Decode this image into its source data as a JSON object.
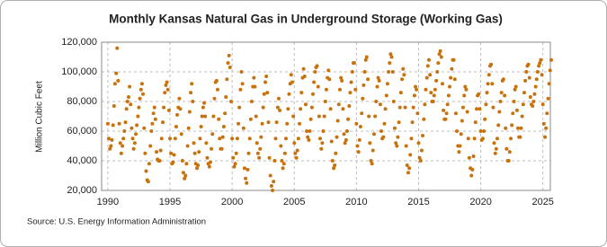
{
  "chart_data": {
    "type": "scatter",
    "title": "Monthly Kansas Natural Gas in Underground Storage (Working Gas)",
    "y_label": "Million Cubic Feet",
    "source": "Source: U.S. Energy Information Administration",
    "color": "#c8720c",
    "grid": true,
    "xlim": [
      1989.5,
      2025.6
    ],
    "xticks": [
      1990,
      1995,
      2000,
      2005,
      2010,
      2015,
      2020,
      2025
    ],
    "ylim": [
      20000,
      120000
    ],
    "yticks": [
      {
        "value": 20000,
        "label": "20,000"
      },
      {
        "value": 40000,
        "label": "40,000"
      },
      {
        "value": 60000,
        "label": "60,000"
      },
      {
        "value": 80000,
        "label": "80,000"
      },
      {
        "value": 100000,
        "label": "100,000"
      },
      {
        "value": 120000,
        "label": "120,000"
      }
    ],
    "x": [
      1990,
      1990.08,
      1990.17,
      1990.25,
      1990.33,
      1990.42,
      1990.5,
      1990.58,
      1990.67,
      1990.75,
      1990.83,
      1990.92,
      1991,
      1991.08,
      1991.17,
      1991.25,
      1991.33,
      1991.42,
      1991.5,
      1991.58,
      1991.67,
      1991.75,
      1991.83,
      1991.92,
      1992,
      1992.08,
      1992.17,
      1992.25,
      1992.33,
      1992.42,
      1992.5,
      1992.58,
      1992.67,
      1992.75,
      1992.83,
      1992.92,
      1993,
      1993.08,
      1993.17,
      1993.25,
      1993.33,
      1993.42,
      1993.5,
      1993.58,
      1993.67,
      1993.75,
      1993.83,
      1993.92,
      1994,
      1994.08,
      1994.17,
      1994.25,
      1994.33,
      1994.42,
      1994.5,
      1994.58,
      1994.67,
      1994.75,
      1994.83,
      1994.92,
      1995,
      1995.08,
      1995.17,
      1995.25,
      1995.33,
      1995.42,
      1995.5,
      1995.58,
      1995.67,
      1995.75,
      1995.83,
      1995.92,
      1996,
      1996.08,
      1996.17,
      1996.25,
      1996.33,
      1996.42,
      1996.5,
      1996.58,
      1996.67,
      1996.75,
      1996.83,
      1996.92,
      1997,
      1997.08,
      1997.17,
      1997.25,
      1997.33,
      1997.42,
      1997.5,
      1997.58,
      1997.67,
      1997.75,
      1997.83,
      1997.92,
      1998,
      1998.08,
      1998.17,
      1998.25,
      1998.33,
      1998.42,
      1998.5,
      1998.58,
      1998.67,
      1998.75,
      1998.83,
      1998.92,
      1999,
      1999.08,
      1999.17,
      1999.25,
      1999.33,
      1999.42,
      1999.5,
      1999.58,
      1999.67,
      1999.75,
      1999.83,
      1999.92,
      2000,
      2000.08,
      2000.17,
      2000.25,
      2000.33,
      2000.42,
      2000.5,
      2000.58,
      2000.67,
      2000.75,
      2000.83,
      2000.92,
      2001,
      2001.08,
      2001.17,
      2001.25,
      2001.33,
      2001.42,
      2001.5,
      2001.58,
      2001.67,
      2001.75,
      2001.83,
      2001.92,
      2002,
      2002.08,
      2002.17,
      2002.25,
      2002.33,
      2002.42,
      2002.5,
      2002.58,
      2002.67,
      2002.75,
      2002.83,
      2002.92,
      2003,
      2003.08,
      2003.17,
      2003.25,
      2003.33,
      2003.42,
      2003.5,
      2003.58,
      2003.67,
      2003.75,
      2003.83,
      2003.92,
      2004,
      2004.08,
      2004.17,
      2004.25,
      2004.33,
      2004.42,
      2004.5,
      2004.58,
      2004.67,
      2004.75,
      2004.83,
      2004.92,
      2005,
      2005.08,
      2005.17,
      2005.25,
      2005.33,
      2005.42,
      2005.5,
      2005.58,
      2005.67,
      2005.75,
      2005.83,
      2005.92,
      2006,
      2006.08,
      2006.17,
      2006.25,
      2006.33,
      2006.42,
      2006.5,
      2006.58,
      2006.67,
      2006.75,
      2006.83,
      2006.92,
      2007,
      2007.08,
      2007.17,
      2007.25,
      2007.33,
      2007.42,
      2007.5,
      2007.58,
      2007.67,
      2007.75,
      2007.83,
      2007.92,
      2008,
      2008.08,
      2008.17,
      2008.25,
      2008.33,
      2008.42,
      2008.5,
      2008.58,
      2008.67,
      2008.75,
      2008.83,
      2008.92,
      2009,
      2009.08,
      2009.17,
      2009.25,
      2009.33,
      2009.42,
      2009.5,
      2009.58,
      2009.67,
      2009.75,
      2009.83,
      2009.92,
      2010,
      2010.08,
      2010.17,
      2010.25,
      2010.33,
      2010.42,
      2010.5,
      2010.58,
      2010.67,
      2010.75,
      2010.83,
      2010.92,
      2011,
      2011.08,
      2011.17,
      2011.25,
      2011.33,
      2011.42,
      2011.5,
      2011.58,
      2011.67,
      2011.75,
      2011.83,
      2011.92,
      2012,
      2012.08,
      2012.17,
      2012.25,
      2012.33,
      2012.42,
      2012.5,
      2012.58,
      2012.67,
      2012.75,
      2012.83,
      2012.92,
      2013,
      2013.08,
      2013.17,
      2013.25,
      2013.33,
      2013.42,
      2013.5,
      2013.58,
      2013.67,
      2013.75,
      2013.83,
      2013.92,
      2014,
      2014.08,
      2014.17,
      2014.25,
      2014.33,
      2014.42,
      2014.5,
      2014.58,
      2014.67,
      2014.75,
      2014.83,
      2014.92,
      2015,
      2015.08,
      2015.17,
      2015.25,
      2015.33,
      2015.42,
      2015.5,
      2015.58,
      2015.67,
      2015.75,
      2015.83,
      2015.92,
      2016,
      2016.08,
      2016.17,
      2016.25,
      2016.33,
      2016.42,
      2016.5,
      2016.58,
      2016.67,
      2016.75,
      2016.83,
      2016.92,
      2017,
      2017.08,
      2017.17,
      2017.25,
      2017.33,
      2017.42,
      2017.5,
      2017.58,
      2017.67,
      2017.75,
      2017.83,
      2017.92,
      2018,
      2018.08,
      2018.17,
      2018.25,
      2018.33,
      2018.42,
      2018.5,
      2018.58,
      2018.67,
      2018.75,
      2018.83,
      2018.92,
      2019,
      2019.08,
      2019.17,
      2019.25,
      2019.33,
      2019.42,
      2019.5,
      2019.58,
      2019.67,
      2019.75,
      2019.83,
      2019.92,
      2020,
      2020.08,
      2020.17,
      2020.25,
      2020.33,
      2020.42,
      2020.5,
      2020.58,
      2020.67,
      2020.75,
      2020.83,
      2020.92,
      2021,
      2021.08,
      2021.17,
      2021.25,
      2021.33,
      2021.42,
      2021.5,
      2021.58,
      2021.67,
      2021.75,
      2021.83,
      2021.92,
      2022,
      2022.08,
      2022.17,
      2022.25,
      2022.33,
      2022.42,
      2022.5,
      2022.58,
      2022.67,
      2022.75,
      2022.83,
      2022.92,
      2023,
      2023.08,
      2023.17,
      2023.25,
      2023.33,
      2023.42,
      2023.5,
      2023.58,
      2023.67,
      2023.75,
      2023.83,
      2023.92,
      2024,
      2024.08,
      2024.17,
      2024.25,
      2024.33,
      2024.42,
      2024.5,
      2024.58,
      2024.67,
      2024.75,
      2024.83,
      2024.92,
      2025,
      2025.08,
      2025.17,
      2025.25,
      2025.33,
      2025.42,
      2025.5,
      2025.58,
      2025.67
    ],
    "values": [
      65000,
      55000,
      48000,
      50000,
      54000,
      64000,
      77000,
      92000,
      99000,
      116000,
      94000,
      65000,
      52000,
      45000,
      50000,
      55000,
      60000,
      66000,
      75000,
      80000,
      83000,
      90000,
      78000,
      62000,
      55000,
      48000,
      52000,
      58000,
      64000,
      70000,
      76000,
      82000,
      88000,
      92000,
      85000,
      62000,
      45000,
      33000,
      27000,
      26000,
      38000,
      50000,
      60000,
      65000,
      72000,
      76000,
      68000,
      46000,
      41000,
      40000,
      40000,
      47000,
      55000,
      66000,
      76000,
      86000,
      91000,
      93000,
      88000,
      74000,
      55000,
      45000,
      38000,
      39000,
      44000,
      55000,
      63000,
      71000,
      76000,
      82000,
      75000,
      58000,
      40000,
      32000,
      28000,
      30000,
      38000,
      50000,
      62000,
      73000,
      86000,
      92000,
      80000,
      52000,
      45000,
      38000,
      35000,
      37000,
      46000,
      55000,
      63000,
      70000,
      76000,
      79000,
      70000,
      52000,
      42000,
      38000,
      36000,
      39000,
      48000,
      58000,
      70000,
      82000,
      93000,
      94000,
      88000,
      68000,
      55000,
      48000,
      48000,
      56000,
      63000,
      72000,
      83000,
      95000,
      106000,
      111000,
      103000,
      80000,
      55000,
      42000,
      36000,
      38000,
      45000,
      55000,
      65000,
      76000,
      88000,
      100000,
      92000,
      62000,
      35000,
      28000,
      25000,
      34000,
      45000,
      55000,
      68000,
      80000,
      90000,
      96000,
      90000,
      70000,
      52000,
      45000,
      42000,
      48000,
      56000,
      65000,
      76000,
      85000,
      93000,
      97000,
      86000,
      66000,
      42000,
      30000,
      23000,
      20000,
      26000,
      40000,
      55000,
      66000,
      76000,
      82000,
      74000,
      50000,
      40000,
      35000,
      38000,
      45000,
      55000,
      65000,
      75000,
      85000,
      92000,
      98000,
      93000,
      70000,
      52000,
      45000,
      42000,
      47000,
      55000,
      65000,
      75000,
      86000,
      96000,
      102000,
      97000,
      78000,
      60000,
      56000,
      54000,
      60000,
      68000,
      76000,
      85000,
      93000,
      100000,
      103000,
      104000,
      90000,
      70000,
      55000,
      48000,
      52000,
      60000,
      70000,
      80000,
      88000,
      96000,
      101000,
      95000,
      75000,
      53000,
      40000,
      35000,
      37000,
      45000,
      56000,
      67000,
      78000,
      88000,
      96000,
      94000,
      75000,
      58000,
      52000,
      54000,
      60000,
      68000,
      77000,
      86000,
      93000,
      100000,
      106000,
      106000,
      88000,
      65000,
      50000,
      46000,
      54000,
      63000,
      72000,
      82000,
      91000,
      100000,
      108000,
      110000,
      95000,
      70000,
      52000,
      40000,
      38000,
      47000,
      58000,
      70000,
      80000,
      90000,
      96000,
      94000,
      78000,
      60000,
      55000,
      56000,
      65000,
      75000,
      84000,
      92000,
      100000,
      106000,
      112000,
      110000,
      100000,
      80000,
      62000,
      52000,
      50000,
      56000,
      66000,
      76000,
      86000,
      95000,
      102000,
      98000,
      76000,
      50000,
      37000,
      32000,
      35000,
      44000,
      55000,
      66000,
      76000,
      84000,
      90000,
      88000,
      72000,
      52000,
      42000,
      40000,
      47000,
      57000,
      68000,
      78000,
      88000,
      96000,
      104000,
      108000,
      98000,
      86000,
      80000,
      80000,
      84000,
      88000,
      94000,
      100000,
      106000,
      112000,
      114000,
      110000,
      92000,
      74000,
      68000,
      68000,
      72000,
      78000,
      84000,
      90000,
      96000,
      102000,
      108000,
      108000,
      95000,
      72000,
      60000,
      50000,
      46000,
      50000,
      58000,
      67000,
      76000,
      84000,
      90000,
      88000,
      73000,
      55000,
      42000,
      35000,
      30000,
      34000,
      43000,
      55000,
      66000,
      75000,
      84000,
      85000,
      75000,
      60000,
      54000,
      55000,
      60000,
      68000,
      78000,
      86000,
      92000,
      98000,
      104000,
      105000,
      92000,
      76000,
      52000,
      45000,
      48000,
      55000,
      64000,
      73000,
      80000,
      86000,
      94000,
      95000,
      84000,
      62000,
      48000,
      40000,
      40000,
      46000,
      55000,
      64000,
      72000,
      80000,
      88000,
      90000,
      74000,
      62000,
      56000,
      56000,
      62000,
      70000,
      78000,
      86000,
      94000,
      100000,
      104000,
      105000,
      96000,
      83000,
      78000,
      77000,
      80000,
      85000,
      90000,
      95000,
      100000,
      104000,
      106000,
      108000,
      98000,
      78000,
      65000,
      56000,
      62000,
      72000,
      82000,
      92000,
      101000,
      108000
    ]
  }
}
